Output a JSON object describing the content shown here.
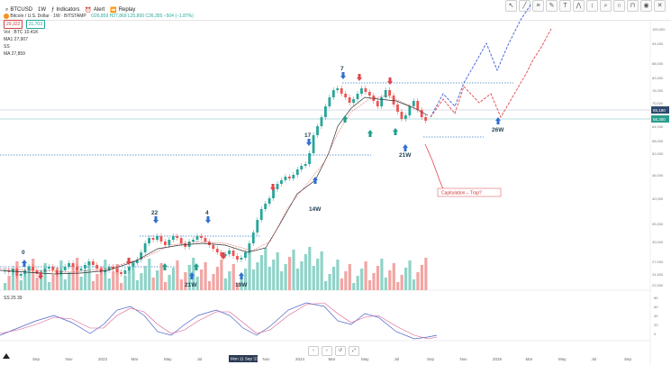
{
  "topbar": {
    "symbol": "BTCUSD",
    "timeframe": "1W",
    "indicators_label": "Indicators",
    "alert_label": "Alert",
    "replay_label": "Replay"
  },
  "legend": {
    "title": "Bitcoin / U.S. Dollar · 1W · BITSTAMP",
    "ohlc": "O26,859 H27,869 L25,800 C26,355 −504 (−1.87%)",
    "price_chip_1": "29,322",
    "price_chip_2": "31,703",
    "line1": "Vol · BTC 10.41K",
    "line2": "MA1 27,907",
    "line3": "SS",
    "line4": "MA 27,859"
  },
  "annotations": {
    "c0": "0",
    "c22": "22",
    "c4": "4",
    "c17": "17",
    "c7": "7",
    "w21a": "21W",
    "w19a": "19W",
    "w14": "14W",
    "w21b": "21W",
    "w26": "26W",
    "capitulation": "Capitulation – Trap?"
  },
  "price_scale": [
    "100,000",
    "94,000",
    "88,000",
    "82,000",
    "76,000",
    "70,000",
    "64,000",
    "58,000",
    "52,000",
    "46,000",
    "40,000",
    "35,000",
    "30,000",
    "27,000",
    "24,500",
    "22,000"
  ],
  "price_tags": {
    "current": "65,190",
    "alt": "56,300"
  },
  "x_labels": [
    "Sep",
    "Nov",
    "2023",
    "Mar",
    "May",
    "Jul",
    "Sep",
    "Nov",
    "2024",
    "Mar",
    "May",
    "Jul",
    "Sep",
    "Nov",
    "2025",
    "Mar",
    "May",
    "Jul",
    "Sep"
  ],
  "x_highlight": "Mon 11 Sep '23",
  "oscillator": {
    "label": "SS 25 39",
    "scale": [
      "80",
      "60",
      "40",
      "20",
      "0"
    ]
  },
  "bottom_controls": [
    "‹",
    "›",
    "↺",
    "⤢"
  ],
  "colors": {
    "up": "#26a69a",
    "down": "#ef5350",
    "blue_proj": "#3f5fd6",
    "red_proj": "#e0454b",
    "dotted": "#2f6fbf"
  }
}
